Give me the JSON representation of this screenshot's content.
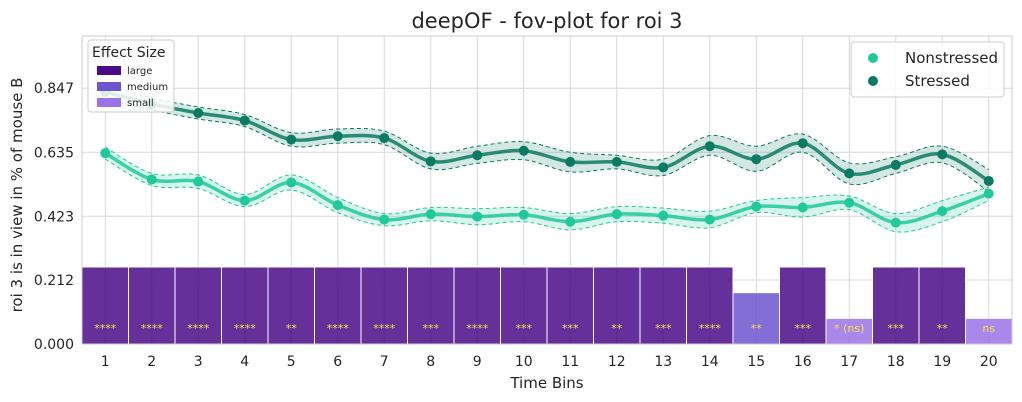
{
  "chart_data": {
    "type": "line",
    "title": "deepOF - fov-plot for roi 3",
    "xlabel": "Time Bins",
    "ylabel": "roi 3 is in view in % of mouse B",
    "x": [
      1,
      2,
      3,
      4,
      5,
      6,
      7,
      8,
      9,
      10,
      11,
      12,
      13,
      14,
      15,
      16,
      17,
      18,
      19,
      20
    ],
    "xlim": [
      0.5,
      20.5
    ],
    "ylim": [
      0.0,
      1.02
    ],
    "yticks": [
      0.0,
      0.212,
      0.423,
      0.635,
      0.847
    ],
    "ytick_labels": [
      "0.000",
      "0.212",
      "0.423",
      "0.635",
      "0.847"
    ],
    "grid": true,
    "series": [
      {
        "name": "Nonstressed",
        "color": "#1fc99a",
        "values": [
          0.632,
          0.545,
          0.538,
          0.475,
          0.535,
          0.46,
          0.412,
          0.43,
          0.422,
          0.428,
          0.405,
          0.43,
          0.425,
          0.412,
          0.455,
          0.452,
          0.468,
          0.402,
          0.44,
          0.498
        ],
        "upper": [
          0.652,
          0.565,
          0.56,
          0.495,
          0.56,
          0.485,
          0.432,
          0.452,
          0.448,
          0.452,
          0.432,
          0.455,
          0.45,
          0.44,
          0.475,
          0.485,
          0.49,
          0.432,
          0.475,
          0.52
        ],
        "lower": [
          0.612,
          0.525,
          0.515,
          0.455,
          0.51,
          0.435,
          0.392,
          0.408,
          0.395,
          0.405,
          0.378,
          0.405,
          0.4,
          0.385,
          0.435,
          0.42,
          0.445,
          0.372,
          0.405,
          0.475
        ]
      },
      {
        "name": "Stressed",
        "color": "#0a7a62",
        "values": [
          0.835,
          0.795,
          0.765,
          0.74,
          0.677,
          0.688,
          0.682,
          0.605,
          0.625,
          0.64,
          0.603,
          0.603,
          0.585,
          0.655,
          0.612,
          0.665,
          0.565,
          0.593,
          0.628,
          0.54
        ],
        "upper": [
          0.86,
          0.815,
          0.785,
          0.76,
          0.7,
          0.712,
          0.705,
          0.632,
          0.655,
          0.67,
          0.635,
          0.625,
          0.612,
          0.69,
          0.655,
          0.695,
          0.6,
          0.62,
          0.655,
          0.578
        ],
        "lower": [
          0.81,
          0.775,
          0.745,
          0.72,
          0.655,
          0.665,
          0.66,
          0.58,
          0.598,
          0.61,
          0.57,
          0.58,
          0.558,
          0.625,
          0.572,
          0.635,
          0.53,
          0.565,
          0.6,
          0.505
        ]
      }
    ],
    "effect_size": {
      "legend_title": "Effect Size",
      "levels": [
        {
          "label": "large",
          "color": "#4b0c8a",
          "height": 0.255
        },
        {
          "label": "medium",
          "color": "#6c55cf",
          "height": 0.17
        },
        {
          "label": "small",
          "color": "#9b72e8",
          "height": 0.085
        }
      ],
      "bins": [
        {
          "x": 1,
          "level": "large",
          "label": "****"
        },
        {
          "x": 2,
          "level": "large",
          "label": "****"
        },
        {
          "x": 3,
          "level": "large",
          "label": "****"
        },
        {
          "x": 4,
          "level": "large",
          "label": "****"
        },
        {
          "x": 5,
          "level": "large",
          "label": "**"
        },
        {
          "x": 6,
          "level": "large",
          "label": "****"
        },
        {
          "x": 7,
          "level": "large",
          "label": "****"
        },
        {
          "x": 8,
          "level": "large",
          "label": "***"
        },
        {
          "x": 9,
          "level": "large",
          "label": "****"
        },
        {
          "x": 10,
          "level": "large",
          "label": "***"
        },
        {
          "x": 11,
          "level": "large",
          "label": "***"
        },
        {
          "x": 12,
          "level": "large",
          "label": "**"
        },
        {
          "x": 13,
          "level": "large",
          "label": "***"
        },
        {
          "x": 14,
          "level": "large",
          "label": "****"
        },
        {
          "x": 15,
          "level": "medium",
          "label": "**"
        },
        {
          "x": 16,
          "level": "large",
          "label": "***"
        },
        {
          "x": 17,
          "level": "small",
          "label": "* (ns)"
        },
        {
          "x": 18,
          "level": "large",
          "label": "***"
        },
        {
          "x": 19,
          "level": "large",
          "label": "**"
        },
        {
          "x": 20,
          "level": "small",
          "label": "ns"
        }
      ]
    },
    "legend_position": "top-right"
  }
}
